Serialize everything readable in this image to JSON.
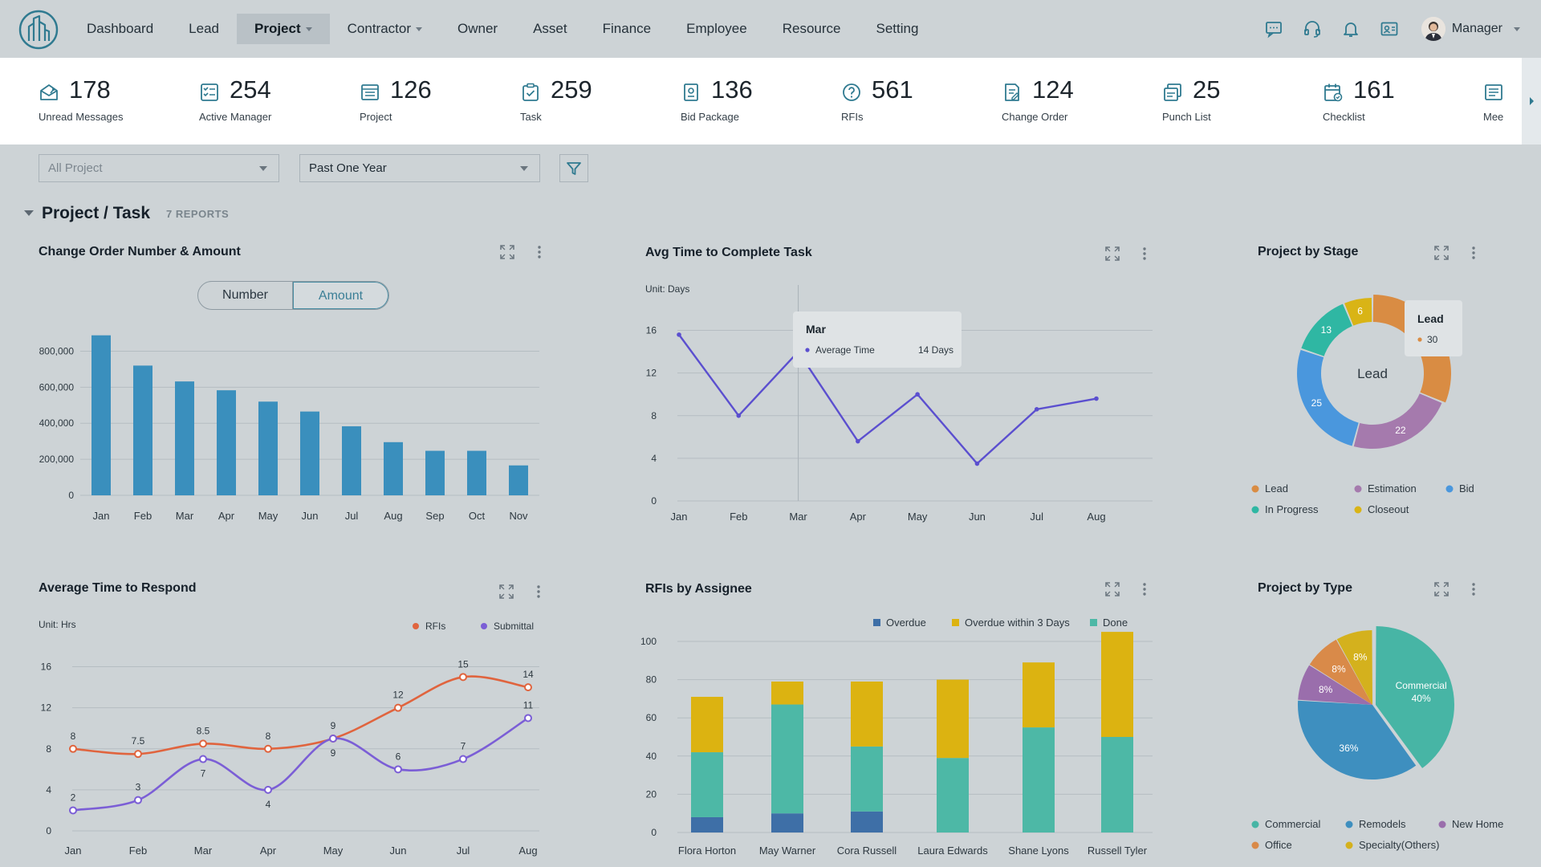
{
  "nav": {
    "items": [
      {
        "label": "Dashboard",
        "active": false,
        "dropdown": false
      },
      {
        "label": "Lead",
        "active": false,
        "dropdown": false
      },
      {
        "label": "Project",
        "active": true,
        "dropdown": true
      },
      {
        "label": "Contractor",
        "active": false,
        "dropdown": true
      },
      {
        "label": "Owner",
        "active": false,
        "dropdown": false
      },
      {
        "label": "Asset",
        "active": false,
        "dropdown": false
      },
      {
        "label": "Finance",
        "active": false,
        "dropdown": false
      },
      {
        "label": "Employee",
        "active": false,
        "dropdown": false
      },
      {
        "label": "Resource",
        "active": false,
        "dropdown": false
      },
      {
        "label": "Setting",
        "active": false,
        "dropdown": false
      }
    ],
    "right_icons": [
      "chat-icon",
      "headset-icon",
      "bell-icon",
      "contact-card-icon"
    ],
    "user": {
      "name": "Manager"
    }
  },
  "stats": [
    {
      "value": "178",
      "label": "Unread Messages",
      "icon": "mail-open-icon"
    },
    {
      "value": "254",
      "label": "Active Manager",
      "icon": "checklist-icon"
    },
    {
      "value": "126",
      "label": "Project",
      "icon": "folder-list-icon"
    },
    {
      "value": "259",
      "label": "Task",
      "icon": "clipboard-check-icon"
    },
    {
      "value": "136",
      "label": "Bid Package",
      "icon": "bid-document-icon"
    },
    {
      "value": "561",
      "label": "RFIs",
      "icon": "question-icon"
    },
    {
      "value": "124",
      "label": "Change Order",
      "icon": "document-edit-icon"
    },
    {
      "value": "25",
      "label": "Punch List",
      "icon": "punch-list-icon"
    },
    {
      "value": "161",
      "label": "Checklist",
      "icon": "calendar-check-icon"
    },
    {
      "value": "",
      "label": "Mee",
      "icon": "meeting-notes-icon"
    }
  ],
  "filters": {
    "project": "All Project",
    "period": "Past One Year"
  },
  "section": {
    "title": "Project / Task",
    "count": "7 REPORTS"
  },
  "widgets": {
    "change_order": {
      "title": "Change Order Number & Amount",
      "toggle": [
        "Number",
        "Amount"
      ],
      "selected": "Amount"
    },
    "avg_complete": {
      "title": "Avg Time to Complete Task",
      "unit": "Unit:  Days",
      "tooltip": {
        "title": "Mar",
        "series": "Average Time",
        "value": "14 Days"
      }
    },
    "project_stage": {
      "title": "Project by Stage",
      "center_label": "Lead",
      "tooltip": {
        "title": "Lead",
        "value": "30"
      }
    },
    "avg_respond": {
      "title": "Average Time to Respond",
      "unit": "Unit:  Hrs"
    },
    "rfis_assignee": {
      "title": "RFIs by Assignee"
    },
    "project_type": {
      "title": "Project by Type"
    }
  },
  "colors": {
    "bar": "#3a8fbd",
    "line_purple": "#5b4fcf",
    "orange": "#e0643e",
    "violet": "#7b5ed6",
    "overdue": "#3e6fa7",
    "overdue3": "#dcb311",
    "done": "#4db8a6",
    "lead": "#d98c43",
    "estimation": "#a57aad",
    "bid": "#4a97dd",
    "inprogress": "#2fb7a3",
    "closeout": "#d9b416",
    "commercial": "#47b5a5",
    "remodels": "#3e8fbf",
    "newhome": "#9a6eac",
    "office": "#d98a49",
    "specialty": "#d4b11d"
  },
  "chart_data": [
    {
      "type": "bar",
      "title": "Change Order Number & Amount",
      "categories": [
        "Jan",
        "Feb",
        "Mar",
        "Apr",
        "May",
        "Jun",
        "Jul",
        "Aug",
        "Sep",
        "Oct",
        "Nov"
      ],
      "values": [
        888000,
        720000,
        632000,
        583000,
        520000,
        465000,
        383000,
        295000,
        247000,
        247000,
        166000
      ],
      "ylim": [
        0,
        900000
      ],
      "yticks": [
        "0",
        "200,000",
        "400,000",
        "600,000",
        "800,000"
      ],
      "ytick_values": [
        0,
        200000,
        400000,
        600000,
        800000
      ]
    },
    {
      "type": "line",
      "title": "Avg Time to Complete Task",
      "ylabel": "Unit:  Days",
      "x": [
        "Jan",
        "Feb",
        "Mar",
        "Apr",
        "May",
        "Jun",
        "Jul",
        "Aug"
      ],
      "values": [
        15.6,
        8,
        14,
        5.6,
        10,
        3.5,
        8.6,
        9.6
      ],
      "ylim": [
        0,
        18
      ],
      "yticks": [
        "0",
        "4",
        "8",
        "12",
        "16"
      ],
      "ytick_values": [
        0,
        4,
        8,
        12,
        16
      ]
    },
    {
      "type": "pie",
      "title": "Project by Stage",
      "donut": true,
      "labels": [
        "Lead",
        "Estimation",
        "Bid",
        "In Progress",
        "Closeout"
      ],
      "values": [
        30,
        22,
        25,
        13,
        6
      ],
      "slice_labels": [
        "",
        "22",
        "25",
        "13",
        "6"
      ]
    },
    {
      "type": "line",
      "title": "Average Time to Respond",
      "ylabel": "Unit:  Hrs",
      "x": [
        "Jan",
        "Feb",
        "Mar",
        "Apr",
        "May",
        "Jun",
        "Jul",
        "Aug"
      ],
      "series": [
        {
          "name": "RFIs",
          "values": [
            8,
            7.5,
            8.5,
            8,
            9,
            12,
            15,
            14
          ],
          "labels": [
            "8",
            "7.5",
            "8.5",
            "8",
            "9",
            "12",
            "15",
            "14"
          ]
        },
        {
          "name": "Submittal",
          "values": [
            2,
            3,
            7,
            4,
            9,
            6,
            7,
            11
          ],
          "labels": [
            "2",
            "3",
            "7",
            "4",
            "9",
            "6",
            "7",
            "11"
          ]
        }
      ],
      "ylim": [
        0,
        18
      ],
      "yticks": [
        "0",
        "4",
        "8",
        "12",
        "16"
      ],
      "ytick_values": [
        0,
        4,
        8,
        12,
        16
      ]
    },
    {
      "type": "bar",
      "stacked": true,
      "title": "RFIs by Assignee",
      "categories": [
        "Flora Horton",
        "May Warner",
        "Cora Russell",
        "Laura Edwards",
        "Shane Lyons",
        "Russell Tyler"
      ],
      "series": [
        {
          "name": "Overdue",
          "values": [
            8,
            10,
            11,
            0,
            0,
            0
          ]
        },
        {
          "name": "Overdue within 3 Days",
          "values": [
            29,
            12,
            34,
            41,
            34,
            55
          ]
        },
        {
          "name": "Done",
          "values": [
            34,
            57,
            34,
            39,
            55,
            50
          ]
        }
      ],
      "ylim": [
        0,
        100
      ],
      "yticks": [
        "0",
        "20",
        "40",
        "60",
        "80",
        "100"
      ],
      "ytick_values": [
        0,
        20,
        40,
        60,
        80,
        100
      ]
    },
    {
      "type": "pie",
      "title": "Project by Type",
      "labels": [
        "Commercial",
        "Remodels",
        "Office",
        "New Home",
        "Specialty(Others)"
      ],
      "values": [
        40,
        36,
        8,
        8,
        8
      ],
      "slice_labels": [
        "Commercial\n40%",
        "36%",
        "8%",
        "8%",
        "8%"
      ]
    }
  ]
}
